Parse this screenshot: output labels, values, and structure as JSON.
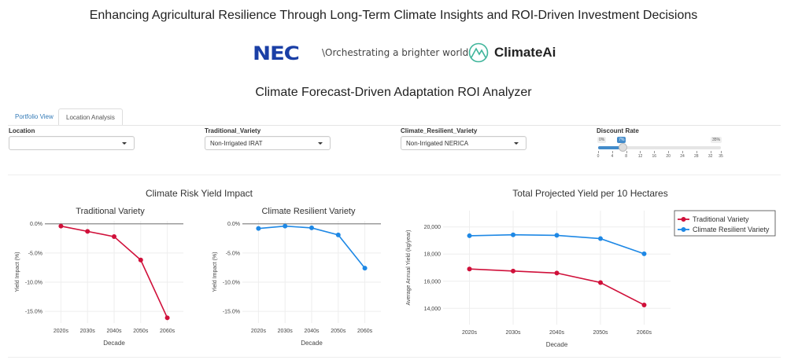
{
  "header": {
    "title": "Enhancing Agricultural Resilience Through Long-Term Climate Insights and ROI-Driven Investment Decisions",
    "nec_logo": "NEC",
    "nec_tagline": "\\Orchestrating a brighter world",
    "climateai_logo": "ClimateAi",
    "subtitle": "Climate Forecast-Driven Adaptation ROI Analyzer"
  },
  "tabs": [
    {
      "label": "Portfolio View",
      "active": false
    },
    {
      "label": "Location Analysis",
      "active": true
    }
  ],
  "controls": {
    "location": {
      "label": "Location",
      "value": ""
    },
    "traditional": {
      "label": "Traditional_Variety",
      "value": "Non-Irrigated IRAT"
    },
    "resilient": {
      "label": "Climate_Resilient_Variety",
      "value": "Non-Irrigated NERICA"
    },
    "discount": {
      "label": "Discount Rate",
      "min": "0%",
      "max": "35%",
      "value": "7%",
      "value_num": 7,
      "ticks": [
        "0",
        "4",
        "8",
        "12",
        "16",
        "20",
        "24",
        "28",
        "32",
        "35"
      ],
      "accent": "#428bca"
    }
  },
  "section_titles": {
    "risk": "Climate Risk Yield Impact",
    "total": "Total Projected Yield per 10 Hectares"
  },
  "colors": {
    "traditional": "#d0103a",
    "resilient": "#1e88e5"
  },
  "chart_data": [
    {
      "type": "line",
      "title": "Traditional Variety",
      "xlabel": "Decade",
      "ylabel": "Yield Impact (%)",
      "categories": [
        "2020s",
        "2030s",
        "2040s",
        "2050s",
        "2060s"
      ],
      "values": [
        -0.4,
        -1.3,
        -2.2,
        -6.2,
        -16.1
      ],
      "ylim": [
        -17,
        0.5
      ],
      "yticks": [
        0,
        -5,
        -10,
        -15
      ],
      "ytick_labels": [
        "0.0%",
        "-5.0%",
        "-10.0%",
        "-15.0%"
      ],
      "grid": true,
      "color": "#d0103a"
    },
    {
      "type": "line",
      "title": "Climate Resilient Variety",
      "xlabel": "Decade",
      "ylabel": "Yield Impact (%)",
      "categories": [
        "2020s",
        "2030s",
        "2040s",
        "2050s",
        "2060s"
      ],
      "values": [
        -0.8,
        -0.4,
        -0.7,
        -1.9,
        -7.6
      ],
      "ylim": [
        -17,
        0.5
      ],
      "yticks": [
        0,
        -5,
        -10,
        -15
      ],
      "ytick_labels": [
        "0.0%",
        "-5.0%",
        "-10.0%",
        "-15.0%"
      ],
      "grid": true,
      "color": "#1e88e5"
    },
    {
      "type": "line",
      "title": "",
      "xlabel": "Decade",
      "ylabel": "Average Annual Yield (kg/year)",
      "categories": [
        "2020s",
        "2030s",
        "2040s",
        "2050s",
        "2060s"
      ],
      "series": [
        {
          "name": "Traditional Variety",
          "values": [
            16900,
            16750,
            16600,
            15900,
            14250
          ],
          "color": "#d0103a"
        },
        {
          "name": "Climate Resilient Variety",
          "values": [
            19350,
            19420,
            19380,
            19140,
            18020
          ],
          "color": "#1e88e5"
        }
      ],
      "ylim": [
        12800,
        21200
      ],
      "yticks": [
        14000,
        16000,
        18000,
        20000
      ],
      "ytick_labels": [
        "14,000",
        "16,000",
        "18,000",
        "20,000"
      ],
      "grid": true,
      "legend": "top-right"
    }
  ]
}
